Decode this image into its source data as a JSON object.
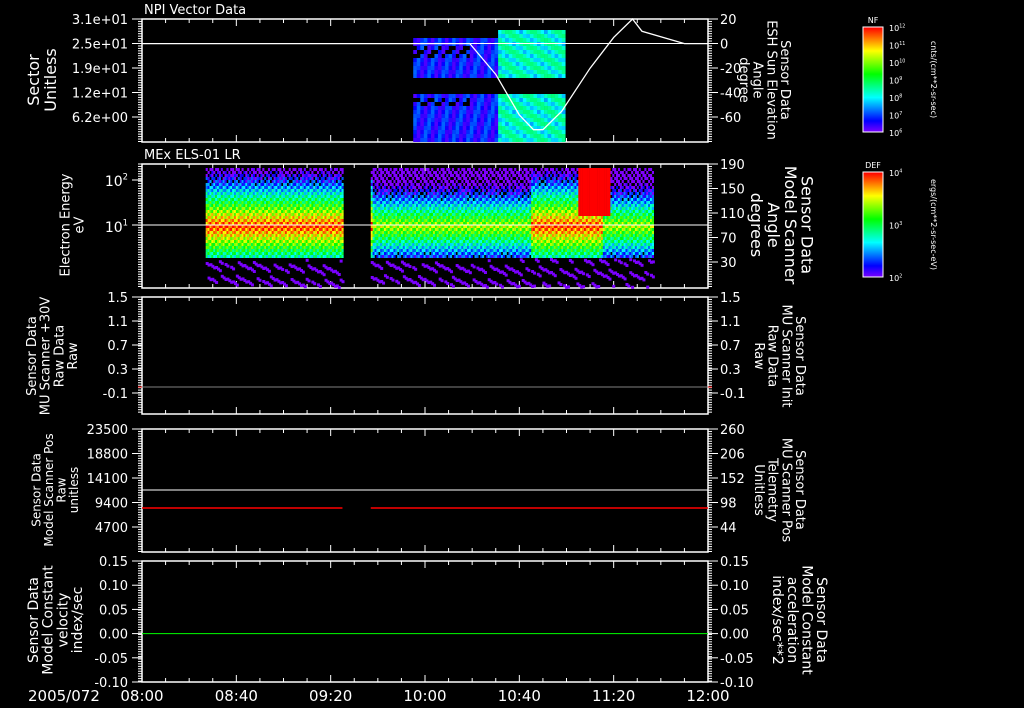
{
  "date_label": "2005/072",
  "time_ticks": [
    "08:00",
    "08:40",
    "09:20",
    "10:00",
    "10:40",
    "11:20",
    "12:00"
  ],
  "time_range_min": [
    0,
    240
  ],
  "colors": {
    "white": "#ffffff",
    "red": "#ff0000",
    "green": "#00ff00",
    "gray": "#808080"
  },
  "chart_data": [
    {
      "type": "heatmap",
      "title": "NPI Vector Data",
      "ylabel": [
        "Sector",
        "Unitless"
      ],
      "yticks": [
        "3.1e+01",
        "2.5e+01",
        "1.9e+01",
        "1.2e+01",
        "6.2e+00"
      ],
      "ylim": [
        0,
        31
      ],
      "y2label": [
        "Sensor Data",
        "ESH Sun Elevation",
        "Angle",
        "degree"
      ],
      "y2ticks": [
        "20",
        "0",
        "-20",
        "-40",
        "-60"
      ],
      "y2lim": [
        -80,
        20
      ],
      "data_time_range_min": [
        115,
        179
      ],
      "hline_left_value": 25,
      "sun_elevation": {
        "t": [
          0,
          139,
          150,
          160,
          166,
          170,
          178,
          190,
          200,
          208,
          212,
          230,
          240
        ],
        "v": [
          0,
          0,
          -25,
          -58,
          -70,
          -70,
          -55,
          -20,
          5,
          20,
          10,
          0,
          0
        ]
      },
      "colorbar": {
        "label": "NF",
        "ticks": [
          "10^12",
          "10^11",
          "10^10",
          "10^9",
          "10^8",
          "10^7",
          "10^6"
        ],
        "units": "cnts/(cm**2-sr-sec)"
      }
    },
    {
      "type": "heatmap",
      "title": "MEx ELS-01 LR",
      "ylabel": [
        "Electron Energy",
        "eV"
      ],
      "yticks": [
        "10^2",
        "10^1"
      ],
      "ylog_range": [
        0.4,
        226
      ],
      "y2label": [
        "Sensor Data",
        "Model Scanner",
        "Angle",
        "degrees"
      ],
      "y2ticks": [
        "190",
        "150",
        "110",
        "70",
        "30"
      ],
      "y2lim": [
        -10,
        190
      ],
      "data_segments_min": [
        [
          27,
          85
        ],
        [
          97,
          217
        ]
      ],
      "hline_right_value": 90,
      "colorbar": {
        "label": "DEF",
        "ticks": [
          "10^4",
          "10^3",
          "10^2"
        ],
        "units": "ergs/(cm**2-sr-sec-eV)"
      }
    },
    {
      "type": "line",
      "ylabel": [
        "Sensor Data",
        "MU Scanner +30V",
        "Raw Data",
        "Raw"
      ],
      "yticks": [
        "1.5",
        "1.1",
        "0.7",
        "0.3",
        "-0.1"
      ],
      "ylim": [
        -0.45,
        1.5
      ],
      "y2label": [
        "Sensor Data",
        "MU Scanner Init",
        "Raw Data",
        "Raw"
      ],
      "y2ticks": [
        "1.5",
        "1.1",
        "0.7",
        "0.3",
        "-0.1"
      ],
      "y2lim": [
        -0.45,
        1.5
      ],
      "series": [
        {
          "name": "MU Scanner +30V",
          "value": 0.0,
          "color": "#808080"
        }
      ]
    },
    {
      "type": "line",
      "ylabel": [
        "Sensor Data",
        "Model Scanner Pos",
        "Raw",
        "unitless"
      ],
      "yticks": [
        "23500",
        "18800",
        "14100",
        "9400",
        "4700"
      ],
      "ylim": [
        0,
        23500
      ],
      "y2label": [
        "Sensor Data",
        "MU Scanner Pos",
        "Telemetry",
        "Unitless"
      ],
      "y2ticks": [
        "260",
        "206",
        "152",
        "98",
        "44"
      ],
      "y2lim": [
        -10,
        260
      ],
      "series": [
        {
          "name": "Model Scanner Pos",
          "value": 11750,
          "color": "#ffffff",
          "segments": [
            [
              0,
              240
            ]
          ]
        },
        {
          "name": "MU Scanner Pos",
          "value": 80,
          "color": "#ff0000",
          "segments": [
            [
              0,
              85
            ],
            [
              97,
              240
            ]
          ]
        }
      ]
    },
    {
      "type": "line",
      "ylabel": [
        "Sensor Data",
        "Model Constant",
        "velocity",
        "index/sec"
      ],
      "yticks": [
        "0.15",
        "0.10",
        "0.05",
        "0.00",
        "-0.05",
        "-0.10"
      ],
      "ylim": [
        -0.1,
        0.15
      ],
      "y2label": [
        "Sensor Data",
        "Model Constant",
        "acceleration",
        "index/sec**2"
      ],
      "y2ticks": [
        "0.15",
        "0.10",
        "0.05",
        "0.00",
        "-0.05",
        "-0.10"
      ],
      "series": [
        {
          "name": "velocity",
          "value": 0.0,
          "color": "#00ff00"
        }
      ]
    }
  ]
}
